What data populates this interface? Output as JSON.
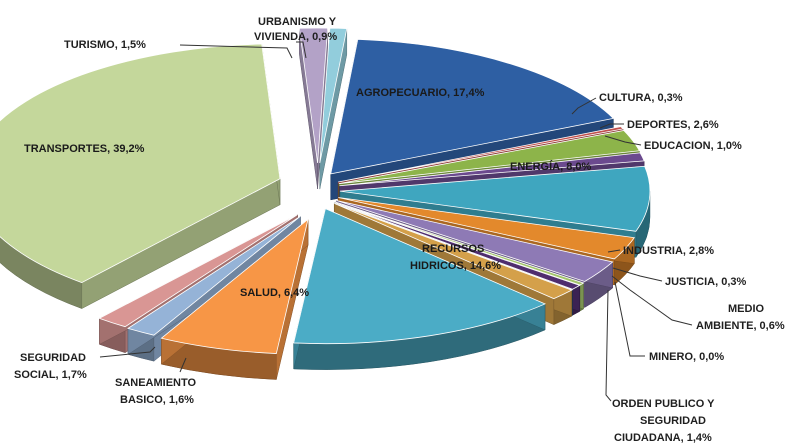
{
  "chart_data": {
    "type": "pie",
    "title": "",
    "slices": [
      {
        "label": "AGROPECUARIO, 17,4%",
        "name": "AGROPECUARIO",
        "value": 17.4,
        "color": "#2E5FA3"
      },
      {
        "label": "CULTURA, 0,3%",
        "name": "CULTURA",
        "value": 0.3,
        "color": "#C0504D"
      },
      {
        "label": "DEPORTES, 2,6%",
        "name": "DEPORTES",
        "value": 2.6,
        "color": "#8DB44A"
      },
      {
        "label": "EDUCACION, 1,0%",
        "name": "EDUCACION",
        "value": 1.0,
        "color": "#6B4A8E"
      },
      {
        "label": "ENERGÍA, 8,0%",
        "name": "ENERGÍA",
        "value": 8.0,
        "color": "#3FA6BF"
      },
      {
        "label": "",
        "name": "",
        "value": 2.8,
        "color": "#E3892C"
      },
      {
        "label": "INDUSTRIA, 2,8%",
        "name": "INDUSTRIA",
        "value": 2.8,
        "color": "#8E7AB5"
      },
      {
        "label": "JUSTICIA, 0,3%",
        "name": "JUSTICIA",
        "value": 0.3,
        "color": "#A3C46B"
      },
      {
        "label": "MEDIO AMBIENTE, 0,6%",
        "name": "MEDIO AMBIENTE",
        "value": 0.6,
        "color": "#4F2D6E"
      },
      {
        "label": "MINERO, 0,0%",
        "name": "MINERO",
        "value": 0.0,
        "color": "#2D6E8E"
      },
      {
        "label": "ORDEN PUBLICO Y SEGURIDAD CIUDADANA, 1,4%",
        "name": "ORDEN PUBLICO Y SEGURIDAD CIUDADANA",
        "value": 1.4,
        "color": "#D4A04A"
      },
      {
        "label": "RECURSOS HIDRICOS, 14,6%",
        "name": "RECURSOS HIDRICOS",
        "value": 14.6,
        "color": "#4BACC6"
      },
      {
        "label": "SALUD, 6,4%",
        "name": "SALUD",
        "value": 6.4,
        "color": "#F79646"
      },
      {
        "label": "SANEAMIENTO BASICO, 1,6%",
        "name": "SANEAMIENTO BASICO",
        "value": 1.6,
        "color": "#95B3D7"
      },
      {
        "label": "SEGURIDAD SOCIAL, 1,7%",
        "name": "SEGURIDAD SOCIAL",
        "value": 1.7,
        "color": "#D99694"
      },
      {
        "label": "TRANSPORTES, 39,2%",
        "name": "TRANSPORTES",
        "value": 39.2,
        "color": "#C4D79B"
      },
      {
        "label": "TURISMO, 1,5%",
        "name": "TURISMO",
        "value": 1.5,
        "color": "#B3A2C7"
      },
      {
        "label": "URBANISMO Y VIVIENDA, 0,9%",
        "name": "URBANISMO Y VIVIENDA",
        "value": 0.9,
        "color": "#92CDDC"
      }
    ],
    "style": "3d-exploded",
    "legend": "none"
  },
  "labels": {
    "agropecuario": "AGROPECUARIO, 17,4%",
    "cultura": "CULTURA, 0,3%",
    "deportes": "DEPORTES, 2,6%",
    "educacion": "EDUCACION, 1,0%",
    "energia": "ENERGÍA, 8,0%",
    "industria": "INDUSTRIA, 2,8%",
    "justicia": "JUSTICIA, 0,3%",
    "medio_ambiente_1": "MEDIO",
    "medio_ambiente_2": "AMBIENTE, 0,6%",
    "minero": "MINERO, 0,0%",
    "orden_1": "ORDEN PUBLICO Y",
    "orden_2": "SEGURIDAD",
    "orden_3": "CIUDADANA, 1,4%",
    "recursos_1": "RECURSOS",
    "recursos_2": "HIDRICOS, 14,6%",
    "salud": "SALUD, 6,4%",
    "saneamiento_1": "SANEAMIENTO",
    "saneamiento_2": "BASICO, 1,6%",
    "seguridad_1": "SEGURIDAD",
    "seguridad_2": "SOCIAL, 1,7%",
    "transportes": "TRANSPORTES, 39,2%",
    "turismo": "TURISMO, 1,5%",
    "urbanismo_1": "URBANISMO Y",
    "urbanismo_2": "VIVIENDA, 0,9%"
  }
}
